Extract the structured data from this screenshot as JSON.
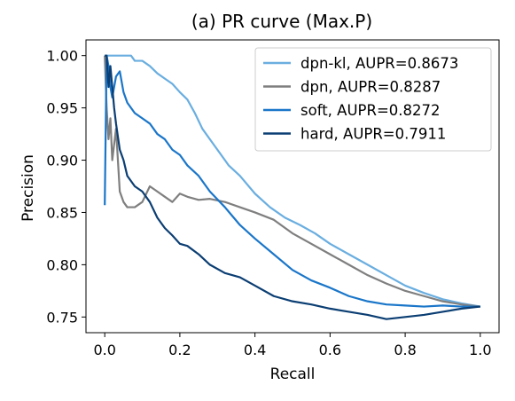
{
  "chart_data": {
    "type": "line",
    "title": "(a) PR curve (Max.P)",
    "xlabel": "Recall",
    "ylabel": "Precision",
    "xlim": [
      -0.05,
      1.05
    ],
    "ylim": [
      0.735,
      1.015
    ],
    "xticks": [
      0.0,
      0.2,
      0.4,
      0.6,
      0.8,
      1.0
    ],
    "xtick_labels": [
      "0.0",
      "0.2",
      "0.4",
      "0.6",
      "0.8",
      "1.0"
    ],
    "yticks": [
      0.75,
      0.8,
      0.85,
      0.9,
      0.95,
      1.0
    ],
    "ytick_labels": [
      "0.75",
      "0.80",
      "0.85",
      "0.90",
      "0.95",
      "1.00"
    ],
    "grid": false,
    "legend_position": "top-right",
    "series": [
      {
        "name": "dpn-kl, AUPR=0.8673",
        "color": "#6aaee0",
        "x": [
          0.0,
          0.01,
          0.02,
          0.03,
          0.05,
          0.07,
          0.08,
          0.1,
          0.12,
          0.14,
          0.16,
          0.18,
          0.2,
          0.22,
          0.24,
          0.26,
          0.28,
          0.3,
          0.33,
          0.36,
          0.4,
          0.44,
          0.48,
          0.52,
          0.56,
          0.6,
          0.65,
          0.7,
          0.75,
          0.8,
          0.85,
          0.9,
          0.95,
          1.0
        ],
        "y": [
          1.0,
          1.0,
          1.0,
          1.0,
          1.0,
          1.0,
          0.995,
          0.995,
          0.99,
          0.983,
          0.978,
          0.973,
          0.965,
          0.958,
          0.945,
          0.93,
          0.92,
          0.91,
          0.895,
          0.885,
          0.868,
          0.855,
          0.845,
          0.838,
          0.83,
          0.82,
          0.81,
          0.8,
          0.79,
          0.78,
          0.773,
          0.767,
          0.763,
          0.76
        ]
      },
      {
        "name": "dpn, AUPR=0.8287",
        "color": "#7f7f7f",
        "x": [
          0.0,
          0.005,
          0.01,
          0.015,
          0.02,
          0.03,
          0.04,
          0.05,
          0.06,
          0.08,
          0.1,
          0.12,
          0.14,
          0.16,
          0.18,
          0.2,
          0.22,
          0.25,
          0.28,
          0.32,
          0.36,
          0.4,
          0.45,
          0.5,
          0.55,
          0.6,
          0.65,
          0.7,
          0.75,
          0.8,
          0.85,
          0.9,
          0.95,
          1.0
        ],
        "y": [
          1.0,
          0.95,
          0.92,
          0.94,
          0.9,
          0.93,
          0.87,
          0.86,
          0.855,
          0.855,
          0.86,
          0.875,
          0.87,
          0.865,
          0.86,
          0.868,
          0.865,
          0.862,
          0.863,
          0.86,
          0.855,
          0.85,
          0.843,
          0.83,
          0.82,
          0.81,
          0.8,
          0.79,
          0.782,
          0.775,
          0.77,
          0.765,
          0.762,
          0.76
        ]
      },
      {
        "name": "soft, AUPR=0.8272",
        "color": "#1a76c9",
        "x": [
          0.0,
          0.005,
          0.01,
          0.015,
          0.02,
          0.03,
          0.04,
          0.05,
          0.06,
          0.08,
          0.1,
          0.12,
          0.14,
          0.16,
          0.18,
          0.2,
          0.22,
          0.25,
          0.28,
          0.32,
          0.36,
          0.4,
          0.45,
          0.5,
          0.55,
          0.6,
          0.65,
          0.7,
          0.75,
          0.8,
          0.85,
          0.9,
          0.95,
          1.0
        ],
        "y": [
          0.857,
          1.0,
          0.99,
          0.97,
          0.96,
          0.98,
          0.985,
          0.965,
          0.955,
          0.945,
          0.94,
          0.935,
          0.925,
          0.92,
          0.91,
          0.905,
          0.895,
          0.885,
          0.87,
          0.855,
          0.838,
          0.825,
          0.81,
          0.795,
          0.785,
          0.778,
          0.77,
          0.765,
          0.762,
          0.761,
          0.76,
          0.761,
          0.76,
          0.76
        ]
      },
      {
        "name": "hard, AUPR=0.7911",
        "color": "#0b3e73",
        "x": [
          0.0,
          0.005,
          0.01,
          0.015,
          0.02,
          0.025,
          0.03,
          0.04,
          0.05,
          0.06,
          0.08,
          0.1,
          0.12,
          0.14,
          0.16,
          0.18,
          0.2,
          0.22,
          0.25,
          0.28,
          0.32,
          0.36,
          0.4,
          0.45,
          0.5,
          0.55,
          0.6,
          0.65,
          0.7,
          0.75,
          0.8,
          0.85,
          0.9,
          0.95,
          1.0
        ],
        "y": [
          1.0,
          1.0,
          0.97,
          0.99,
          0.97,
          0.95,
          0.935,
          0.91,
          0.9,
          0.885,
          0.875,
          0.87,
          0.86,
          0.845,
          0.835,
          0.828,
          0.82,
          0.818,
          0.81,
          0.8,
          0.792,
          0.788,
          0.78,
          0.77,
          0.765,
          0.762,
          0.758,
          0.755,
          0.752,
          0.748,
          0.75,
          0.752,
          0.755,
          0.758,
          0.76
        ]
      }
    ]
  }
}
